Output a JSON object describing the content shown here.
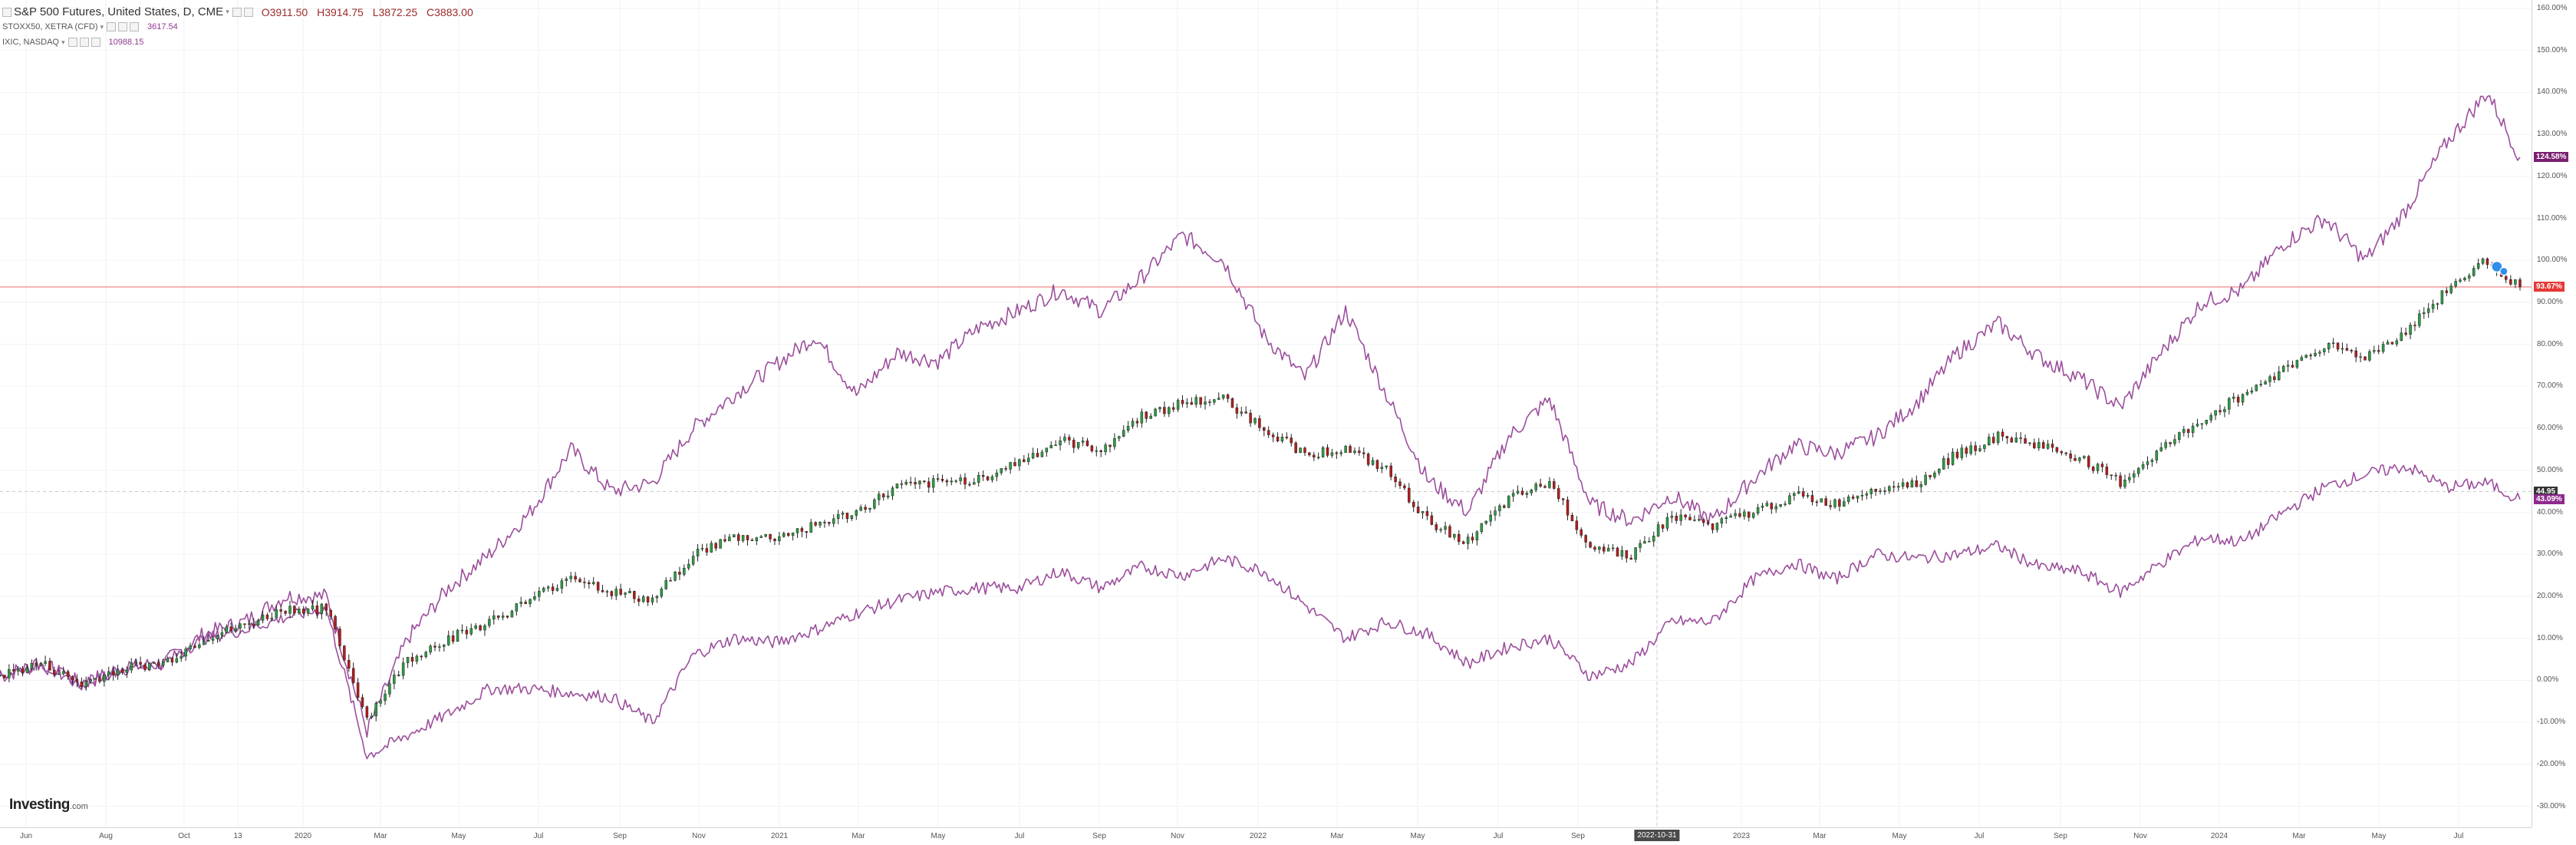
{
  "legend": {
    "main": {
      "title": "S&P 500 Futures, United States, D, CME",
      "open_label": "O",
      "open": "3911.50",
      "high_label": "H",
      "high": "3914.75",
      "low_label": "L",
      "low": "3872.25",
      "close_label": "C",
      "close": "3883.00"
    },
    "overlays": [
      {
        "name": "STOXX50, XETRA (CFD)",
        "value": "3617.54"
      },
      {
        "name": "IXIC, NASDAQ",
        "value": "10988.15"
      }
    ]
  },
  "watermark": {
    "brand": "Investing",
    "suffix": ".com"
  },
  "crosshair_date": "2022-10-31",
  "price_tags": [
    {
      "text": "124.58%",
      "value": 124.58,
      "color": "#7a1f6f"
    },
    {
      "text": "93.67%",
      "value": 93.67,
      "color": "#e53935"
    },
    {
      "text": "44.95",
      "value": 44.95,
      "color": "#333333"
    },
    {
      "text": "43.09%",
      "value": 43.09,
      "color": "#8e2a8e"
    }
  ],
  "colors": {
    "up": "#2e9e44",
    "down": "#b71c1c",
    "wick": "#222222",
    "overlay": "#9c4f9c",
    "hline": "#f29a9a",
    "grid": "#f0f2f5",
    "crosshair": "#c8c8c8"
  },
  "chart_data": {
    "type": "line",
    "scale": "percent change",
    "ylim": [
      -35,
      162
    ],
    "y_ticks": [
      -30,
      -20,
      -10,
      0,
      10,
      20,
      30,
      40,
      50,
      60,
      70,
      80,
      90,
      100,
      110,
      120,
      130,
      140,
      150,
      160
    ],
    "x_ticks": [
      "Jun",
      "Aug",
      "Oct",
      "13",
      "2020",
      "Mar",
      "May",
      "Jul",
      "Sep",
      "Nov",
      "2021",
      "Mar",
      "May",
      "Jul",
      "Sep",
      "Nov",
      "2022",
      "Mar",
      "May",
      "Jul",
      "Sep",
      "2022-10-31",
      "2023",
      "Mar",
      "May",
      "Jul",
      "Sep",
      "Nov",
      "2024",
      "Mar",
      "May",
      "Jul"
    ],
    "x_range": [
      "2019-06",
      "2024-07"
    ],
    "horizontal_lines": [
      93.67
    ],
    "series": [
      {
        "name": "S&P 500 Futures, United States, D, CME",
        "style": "candlestick",
        "points": [
          [
            "2019-06",
            1
          ],
          [
            "2019-07",
            4
          ],
          [
            "2019-08",
            -1
          ],
          [
            "2019-09",
            3
          ],
          [
            "2019-10",
            4
          ],
          [
            "2019-11",
            10
          ],
          [
            "2019-12",
            13
          ],
          [
            "2020-01",
            17
          ],
          [
            "2020-02",
            17
          ],
          [
            "2020-03",
            -9
          ],
          [
            "2020-04",
            5
          ],
          [
            "2020-05",
            10
          ],
          [
            "2020-06",
            14
          ],
          [
            "2020-07",
            19
          ],
          [
            "2020-08",
            25
          ],
          [
            "2020-09",
            21
          ],
          [
            "2020-10",
            19
          ],
          [
            "2020-11",
            30
          ],
          [
            "2020-12",
            34
          ],
          [
            "2021-01",
            34
          ],
          [
            "2021-02",
            37
          ],
          [
            "2021-03",
            40
          ],
          [
            "2021-04",
            46
          ],
          [
            "2021-05",
            47
          ],
          [
            "2021-06",
            48
          ],
          [
            "2021-07",
            52
          ],
          [
            "2021-08",
            57
          ],
          [
            "2021-09",
            55
          ],
          [
            "2021-10",
            63
          ],
          [
            "2021-11",
            66
          ],
          [
            "2021-12",
            67
          ],
          [
            "2022-01",
            60
          ],
          [
            "2022-02",
            54
          ],
          [
            "2022-03",
            55
          ],
          [
            "2022-04",
            50
          ],
          [
            "2022-05",
            38
          ],
          [
            "2022-06",
            33
          ],
          [
            "2022-07",
            43
          ],
          [
            "2022-08",
            47
          ],
          [
            "2022-09",
            32
          ],
          [
            "2022-10",
            30
          ],
          [
            "2022-11",
            39
          ],
          [
            "2022-12",
            37
          ],
          [
            "2023-01",
            40
          ],
          [
            "2023-02",
            44
          ],
          [
            "2023-03",
            42
          ],
          [
            "2023-04",
            46
          ],
          [
            "2023-05",
            47
          ],
          [
            "2023-06",
            54
          ],
          [
            "2023-07",
            58
          ],
          [
            "2023-08",
            56
          ],
          [
            "2023-09",
            53
          ],
          [
            "2023-10",
            47
          ],
          [
            "2023-11",
            55
          ],
          [
            "2023-12",
            62
          ],
          [
            "2024-01",
            68
          ],
          [
            "2024-02",
            74
          ],
          [
            "2024-03",
            80
          ],
          [
            "2024-04",
            77
          ],
          [
            "2024-05",
            83
          ],
          [
            "2024-06",
            93
          ],
          [
            "2024-07",
            100
          ],
          [
            "2024-07-25",
            93.67
          ]
        ]
      },
      {
        "name": "IXIC, NASDAQ",
        "style": "line",
        "points": [
          [
            "2019-06",
            1
          ],
          [
            "2019-07",
            4
          ],
          [
            "2019-08",
            -1
          ],
          [
            "2019-09",
            3
          ],
          [
            "2019-10",
            4
          ],
          [
            "2019-11",
            11
          ],
          [
            "2019-12",
            14
          ],
          [
            "2020-01",
            20
          ],
          [
            "2020-02",
            20
          ],
          [
            "2020-03",
            -12
          ],
          [
            "2020-04",
            10
          ],
          [
            "2020-05",
            22
          ],
          [
            "2020-06",
            30
          ],
          [
            "2020-07",
            40
          ],
          [
            "2020-08",
            55
          ],
          [
            "2020-09",
            45
          ],
          [
            "2020-10",
            47
          ],
          [
            "2020-11",
            60
          ],
          [
            "2020-12",
            68
          ],
          [
            "2021-01",
            75
          ],
          [
            "2021-02",
            82
          ],
          [
            "2021-03",
            68
          ],
          [
            "2021-04",
            78
          ],
          [
            "2021-05",
            76
          ],
          [
            "2021-06",
            84
          ],
          [
            "2021-07",
            88
          ],
          [
            "2021-08",
            93
          ],
          [
            "2021-09",
            88
          ],
          [
            "2021-10",
            96
          ],
          [
            "2021-11",
            106
          ],
          [
            "2021-12",
            100
          ],
          [
            "2022-01",
            82
          ],
          [
            "2022-02",
            72
          ],
          [
            "2022-03",
            88
          ],
          [
            "2022-04",
            68
          ],
          [
            "2022-05",
            48
          ],
          [
            "2022-06",
            40
          ],
          [
            "2022-07",
            58
          ],
          [
            "2022-08",
            67
          ],
          [
            "2022-09",
            42
          ],
          [
            "2022-10",
            38
          ],
          [
            "2022-11",
            44
          ],
          [
            "2022-12",
            38
          ],
          [
            "2023-01",
            48
          ],
          [
            "2023-02",
            56
          ],
          [
            "2023-03",
            54
          ],
          [
            "2023-04",
            58
          ],
          [
            "2023-05",
            66
          ],
          [
            "2023-06",
            78
          ],
          [
            "2023-07",
            85
          ],
          [
            "2023-08",
            77
          ],
          [
            "2023-09",
            72
          ],
          [
            "2023-10",
            65
          ],
          [
            "2023-11",
            78
          ],
          [
            "2023-12",
            90
          ],
          [
            "2024-01",
            93
          ],
          [
            "2024-02",
            104
          ],
          [
            "2024-03",
            110
          ],
          [
            "2024-04",
            100
          ],
          [
            "2024-05",
            112
          ],
          [
            "2024-06",
            128
          ],
          [
            "2024-07",
            140
          ],
          [
            "2024-07-25",
            124.58
          ]
        ]
      },
      {
        "name": "STOXX50, XETRA (CFD)",
        "style": "line",
        "points": [
          [
            "2019-06",
            1
          ],
          [
            "2019-07",
            4
          ],
          [
            "2019-08",
            -1
          ],
          [
            "2019-09",
            3
          ],
          [
            "2019-10",
            4
          ],
          [
            "2019-11",
            10
          ],
          [
            "2019-12",
            12
          ],
          [
            "2020-01",
            15
          ],
          [
            "2020-02",
            17
          ],
          [
            "2020-03",
            -18
          ],
          [
            "2020-04",
            -13
          ],
          [
            "2020-05",
            -8
          ],
          [
            "2020-06",
            -2
          ],
          [
            "2020-07",
            -2
          ],
          [
            "2020-08",
            -3
          ],
          [
            "2020-09",
            -4
          ],
          [
            "2020-10",
            -10
          ],
          [
            "2020-11",
            6
          ],
          [
            "2020-12",
            10
          ],
          [
            "2021-01",
            9
          ],
          [
            "2021-02",
            12
          ],
          [
            "2021-03",
            16
          ],
          [
            "2021-04",
            19
          ],
          [
            "2021-05",
            21
          ],
          [
            "2021-06",
            22
          ],
          [
            "2021-07",
            22
          ],
          [
            "2021-08",
            26
          ],
          [
            "2021-09",
            22
          ],
          [
            "2021-10",
            27
          ],
          [
            "2021-11",
            25
          ],
          [
            "2021-12",
            29
          ],
          [
            "2022-01",
            26
          ],
          [
            "2022-02",
            18
          ],
          [
            "2022-03",
            10
          ],
          [
            "2022-04",
            14
          ],
          [
            "2022-05",
            11
          ],
          [
            "2022-06",
            4
          ],
          [
            "2022-07",
            8
          ],
          [
            "2022-08",
            10
          ],
          [
            "2022-09",
            1
          ],
          [
            "2022-10",
            4
          ],
          [
            "2022-11",
            14
          ],
          [
            "2022-12",
            14
          ],
          [
            "2023-01",
            24
          ],
          [
            "2023-02",
            28
          ],
          [
            "2023-03",
            24
          ],
          [
            "2023-04",
            30
          ],
          [
            "2023-05",
            29
          ],
          [
            "2023-06",
            30
          ],
          [
            "2023-07",
            32
          ],
          [
            "2023-08",
            27
          ],
          [
            "2023-09",
            26
          ],
          [
            "2023-10",
            21
          ],
          [
            "2023-11",
            28
          ],
          [
            "2023-12",
            34
          ],
          [
            "2024-01",
            33
          ],
          [
            "2024-02",
            40
          ],
          [
            "2024-03",
            46
          ],
          [
            "2024-04",
            49
          ],
          [
            "2024-05",
            51
          ],
          [
            "2024-06",
            46
          ],
          [
            "2024-07",
            47
          ],
          [
            "2024-07-25",
            43.09
          ]
        ]
      }
    ]
  }
}
